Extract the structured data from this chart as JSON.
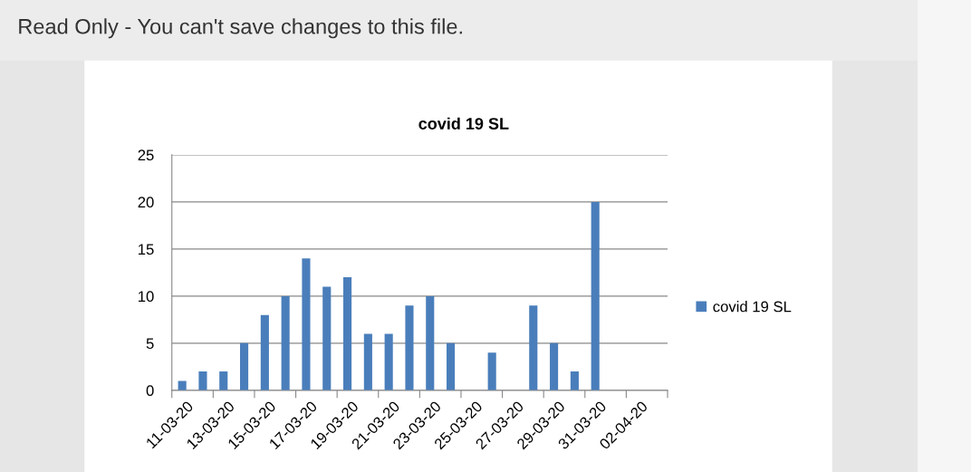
{
  "chart_data": {
    "type": "bar",
    "title": "covid 19 SL",
    "annotations": [
      "Read Only - You can't save changes to this file."
    ],
    "categories": [
      "11-03-20",
      null,
      "13-03-20",
      null,
      "15-03-20",
      null,
      "17-03-20",
      null,
      "19-03-20",
      null,
      "21-03-20",
      null,
      "23-03-20",
      null,
      "25-03-20",
      null,
      "27-03-20",
      null,
      "29-03-20",
      null,
      "31-03-20",
      null,
      "02-04-20",
      null
    ],
    "series": [
      {
        "name": "covid 19 SL",
        "color": "#4a7ebb",
        "values": [
          1,
          2,
          2,
          5,
          8,
          10,
          14,
          11,
          12,
          6,
          6,
          9,
          10,
          5,
          null,
          4,
          null,
          9,
          5,
          2,
          20,
          null,
          null,
          null
        ]
      }
    ],
    "ylim": [
      0,
      25
    ],
    "yticks": [
      0,
      5,
      10,
      15,
      20,
      25
    ],
    "grid": "y",
    "legend": "right"
  }
}
